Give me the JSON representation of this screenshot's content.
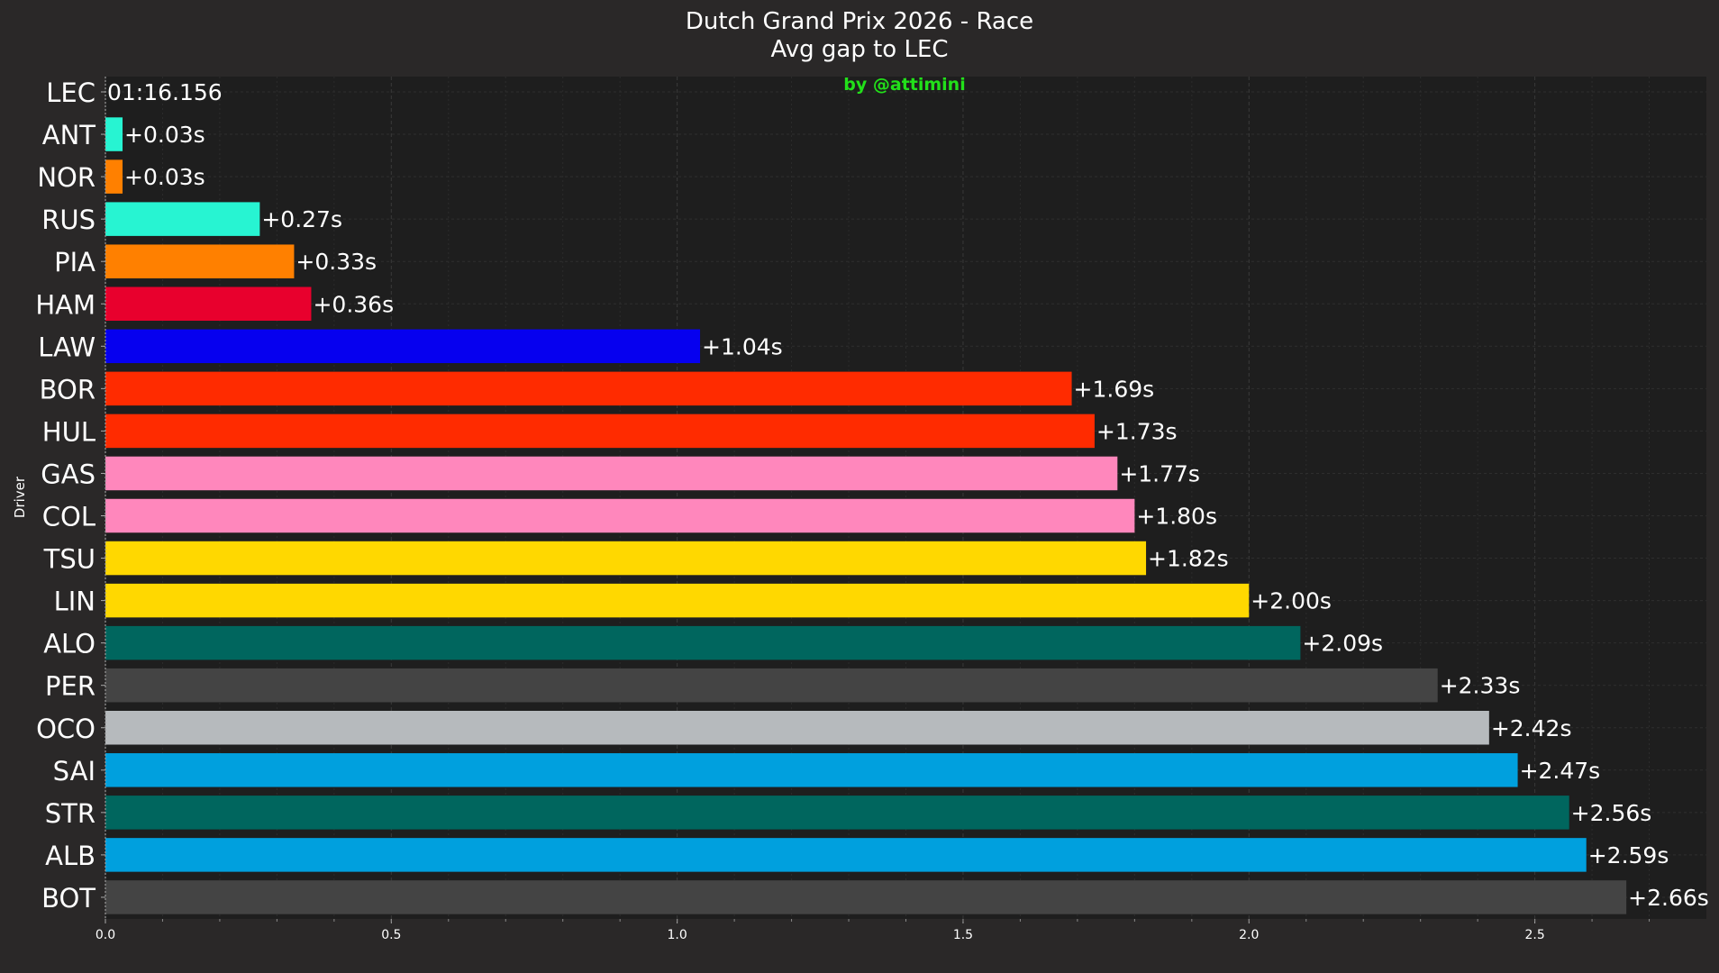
{
  "chart_data": {
    "type": "bar",
    "orientation": "horizontal",
    "title": "Dutch Grand Prix 2026 - Race",
    "subtitle": "Avg gap to LEC",
    "watermark": "by @attimini",
    "xlabel": "",
    "ylabel": "Driver",
    "xlim": [
      0,
      2.8
    ],
    "xticks": [
      0.0,
      0.5,
      1.0,
      1.5,
      2.0,
      2.5
    ],
    "xtick_labels": [
      "0.0",
      "0.5",
      "1.0",
      "1.5",
      "2.0",
      "2.5"
    ],
    "grid": true,
    "categories": [
      "LEC",
      "ANT",
      "NOR",
      "RUS",
      "PIA",
      "HAM",
      "LAW",
      "BOR",
      "HUL",
      "GAS",
      "COL",
      "TSU",
      "LIN",
      "ALO",
      "PER",
      "OCO",
      "SAI",
      "STR",
      "ALB",
      "BOT"
    ],
    "values": [
      0.0,
      0.03,
      0.03,
      0.27,
      0.33,
      0.36,
      1.04,
      1.69,
      1.73,
      1.77,
      1.8,
      1.82,
      2.0,
      2.09,
      2.33,
      2.42,
      2.47,
      2.56,
      2.59,
      2.66
    ],
    "labels": [
      "01:16.156",
      "+0.03s",
      "+0.03s",
      "+0.27s",
      "+0.33s",
      "+0.36s",
      "+1.04s",
      "+1.69s",
      "+1.73s",
      "+1.77s",
      "+1.80s",
      "+1.82s",
      "+2.00s",
      "+2.09s",
      "+2.33s",
      "+2.42s",
      "+2.47s",
      "+2.56s",
      "+2.59s",
      "+2.66s"
    ],
    "colors": [
      "#e8002d",
      "#27f4d2",
      "#ff8000",
      "#27f4d2",
      "#ff8000",
      "#e8002d",
      "#0600ef",
      "#ff2b00",
      "#ff2b00",
      "#ff87bc",
      "#ff87bc",
      "#ffd800",
      "#ffd800",
      "#00665e",
      "#444444",
      "#b6babd",
      "#00a0de",
      "#00665e",
      "#00a0de",
      "#444444"
    ]
  }
}
